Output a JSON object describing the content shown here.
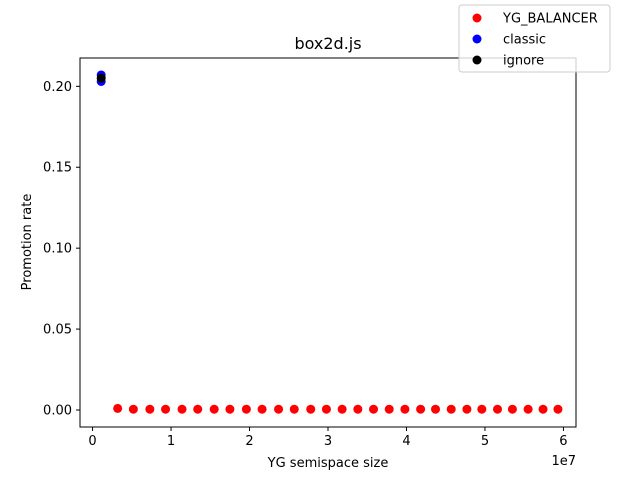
{
  "chart_data": {
    "type": "scatter",
    "title": "box2d.js",
    "xlabel": "YG semispace size",
    "ylabel": "Promotion rate",
    "x_offset_label": "1e7",
    "xlim": [
      -1600000,
      61600000
    ],
    "ylim": [
      -0.0105,
      0.2175
    ],
    "x_ticks": [
      0,
      10000000,
      20000000,
      30000000,
      40000000,
      50000000,
      60000000
    ],
    "x_tick_labels": [
      "0",
      "1",
      "2",
      "3",
      "4",
      "5",
      "6"
    ],
    "y_ticks": [
      0.0,
      0.05,
      0.1,
      0.15,
      0.2
    ],
    "y_tick_labels": [
      "0.00",
      "0.05",
      "0.10",
      "0.15",
      "0.20"
    ],
    "grid": false,
    "legend_position": "top-right",
    "series": [
      {
        "name": "YG_BALANCER",
        "color": "#ff0000",
        "x": [
          3200000,
          5200000,
          7300000,
          9300000,
          11400000,
          13400000,
          15500000,
          17500000,
          19600000,
          21600000,
          23700000,
          25700000,
          27800000,
          29800000,
          31800000,
          33800000,
          35800000,
          37800000,
          39800000,
          41800000,
          43700000,
          45700000,
          47700000,
          49600000,
          51600000,
          53500000,
          55500000,
          57400000,
          59300000
        ],
        "y": [
          0.001,
          0.0005,
          0.0005,
          0.0005,
          0.0005,
          0.0005,
          0.0005,
          0.0005,
          0.0005,
          0.0005,
          0.0005,
          0.0005,
          0.0005,
          0.0005,
          0.0005,
          0.0005,
          0.0005,
          0.0005,
          0.0005,
          0.0005,
          0.0005,
          0.0005,
          0.0005,
          0.0005,
          0.0005,
          0.0005,
          0.0005,
          0.0005,
          0.0005
        ]
      },
      {
        "name": "classic",
        "color": "#0000ff",
        "x": [
          1100000,
          1100000
        ],
        "y": [
          0.207,
          0.203
        ]
      },
      {
        "name": "ignore",
        "color": "#000000",
        "x": [
          1100000
        ],
        "y": [
          0.205
        ]
      }
    ]
  }
}
